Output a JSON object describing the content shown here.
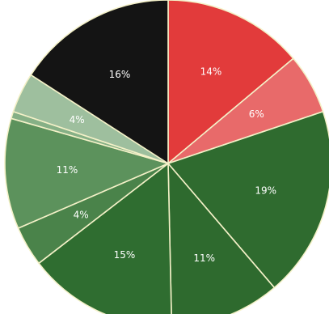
{
  "chart_data": {
    "type": "pie",
    "title": "",
    "legend": "none",
    "start_angle_deg": 0,
    "direction": "clockwise",
    "slices": [
      {
        "label": "14%",
        "value": 14,
        "color": "#e23b3b"
      },
      {
        "label": "6%",
        "value": 6,
        "color": "#e86a6a"
      },
      {
        "label": "19%",
        "value": 19,
        "color": "#2f6b2f"
      },
      {
        "label": "11%",
        "value": 11,
        "color": "#2e6a2e"
      },
      {
        "label": "15%",
        "value": 15,
        "color": "#2f6d30"
      },
      {
        "label": "4%",
        "value": 4,
        "color": "#4a834a"
      },
      {
        "label": "11%",
        "value": 11,
        "color": "#5c925c"
      },
      {
        "label": "",
        "value": 0.7,
        "color": "#86b086"
      },
      {
        "label": "4%",
        "value": 4,
        "color": "#9ebf9e"
      },
      {
        "label": "16%",
        "value": 16,
        "color": "#141414"
      }
    ]
  }
}
